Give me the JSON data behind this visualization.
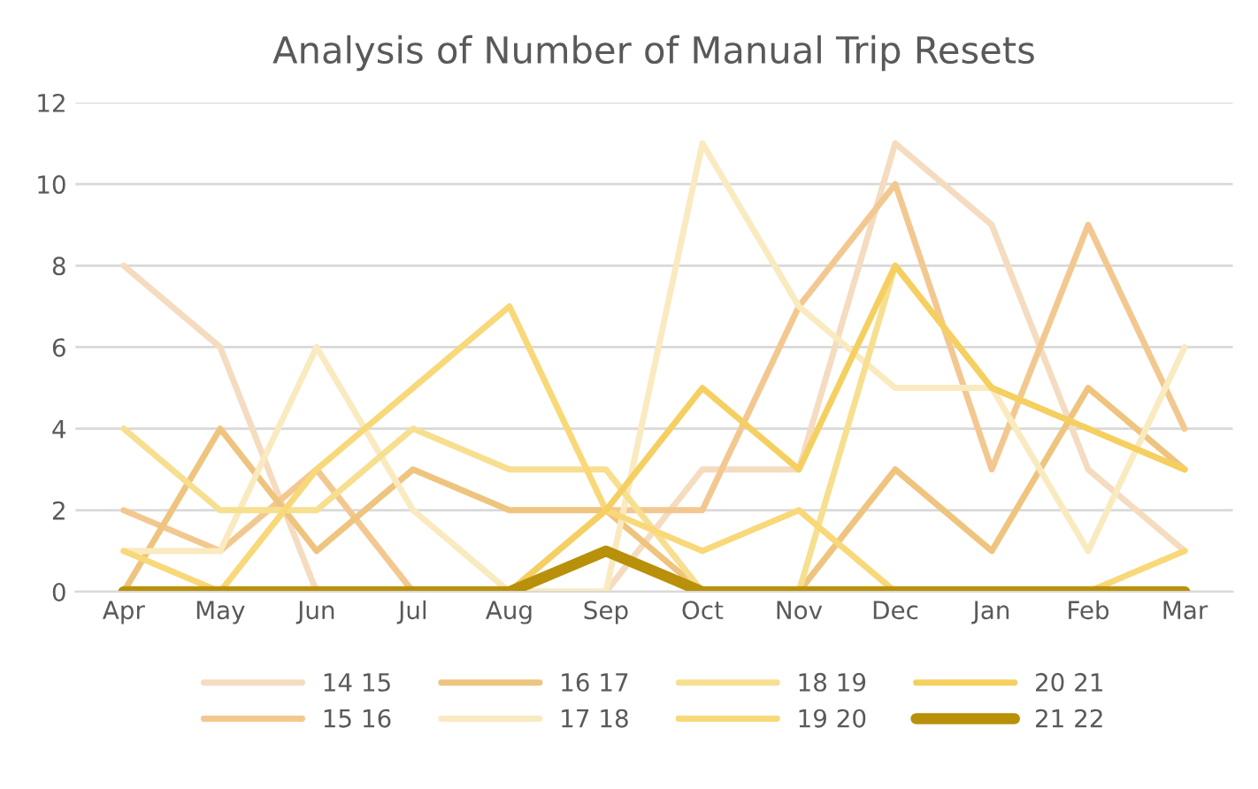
{
  "chart_data": {
    "type": "line",
    "title": "Analysis of Number of Manual Trip Resets",
    "categories": [
      "Apr",
      "May",
      "Jun",
      "Jul",
      "Aug",
      "Sep",
      "Oct",
      "Nov",
      "Dec",
      "Jan",
      "Feb",
      "Mar"
    ],
    "series": [
      {
        "name": "14 15",
        "color": "#f5dcc0",
        "values": [
          8,
          6,
          0,
          0,
          0,
          0,
          3,
          3,
          11,
          9,
          3,
          1
        ]
      },
      {
        "name": "15 16",
        "color": "#f3c890",
        "values": [
          2,
          1,
          3,
          0,
          0,
          2,
          2,
          7,
          10,
          3,
          9,
          4
        ]
      },
      {
        "name": "16 17",
        "color": "#eec47e",
        "values": [
          0,
          4,
          1,
          3,
          2,
          2,
          0,
          0,
          3,
          1,
          5,
          3
        ]
      },
      {
        "name": "17 18",
        "color": "#faeac0",
        "values": [
          1,
          1,
          6,
          2,
          0,
          0,
          11,
          7,
          5,
          5,
          1,
          6
        ]
      },
      {
        "name": "18 19",
        "color": "#f7df90",
        "values": [
          4,
          2,
          2,
          4,
          3,
          3,
          0,
          0,
          8,
          5,
          4,
          3
        ]
      },
      {
        "name": "19 20",
        "color": "#f8d878",
        "values": [
          1,
          0,
          3,
          5,
          7,
          2,
          1,
          2,
          0,
          0,
          0,
          1
        ]
      },
      {
        "name": "20 21",
        "color": "#f5cf60",
        "values": [
          0,
          0,
          0,
          0,
          0,
          2,
          5,
          3,
          8,
          5,
          4,
          3
        ]
      },
      {
        "name": "21 22",
        "color": "#b8900a",
        "values": [
          0,
          0,
          0,
          0,
          0,
          1,
          0,
          0,
          0,
          0,
          0,
          0
        ]
      }
    ],
    "ylim": [
      0,
      12
    ],
    "yticks": [
      0,
      2,
      4,
      6,
      8,
      10,
      12
    ],
    "grid": "y",
    "legend": "bottom",
    "marker": "none",
    "line_style": "solid"
  }
}
